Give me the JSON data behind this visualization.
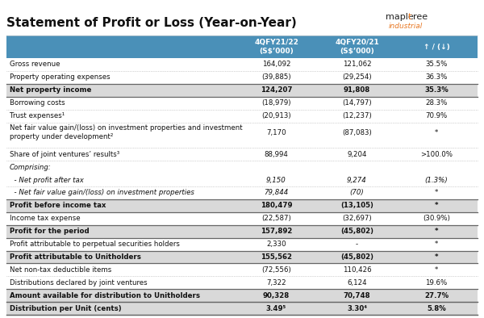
{
  "title": "Statement of Profit or Loss (Year-on-Year)",
  "header_bg": "#4a90b8",
  "header_text_color": "#ffffff",
  "col1_header": "4QFY21/22\n(S$’000)",
  "col2_header": "4QFY20/21\n(S$’000)",
  "col3_header": "↑ / (↓)",
  "rows": [
    {
      "label": "Gross revenue",
      "v1": "164,092",
      "v2": "121,062",
      "v3": "35.5%",
      "bold": false,
      "italic": false,
      "shade": false,
      "thick_top": false,
      "thick_bot": false
    },
    {
      "label": "Property operating expenses",
      "v1": "(39,885)",
      "v2": "(29,254)",
      "v3": "36.3%",
      "bold": false,
      "italic": false,
      "shade": false,
      "thick_top": false,
      "thick_bot": false
    },
    {
      "label": "Net property income",
      "v1": "124,207",
      "v2": "91,808",
      "v3": "35.3%",
      "bold": true,
      "italic": false,
      "shade": true,
      "thick_top": true,
      "thick_bot": true
    },
    {
      "label": "Borrowing costs",
      "v1": "(18,979)",
      "v2": "(14,797)",
      "v3": "28.3%",
      "bold": false,
      "italic": false,
      "shade": false,
      "thick_top": false,
      "thick_bot": false
    },
    {
      "label": "Trust expenses¹",
      "v1": "(20,913)",
      "v2": "(12,237)",
      "v3": "70.9%",
      "bold": false,
      "italic": false,
      "shade": false,
      "thick_top": false,
      "thick_bot": false
    },
    {
      "label": "Net fair value gain/(loss) on investment properties and investment\nproperty under development²",
      "v1": "7,170",
      "v2": "(87,083)",
      "v3": "*",
      "bold": false,
      "italic": false,
      "shade": false,
      "thick_top": false,
      "thick_bot": false,
      "tall": true
    },
    {
      "label": "Share of joint ventures’ results³",
      "v1": "88,994",
      "v2": "9,204",
      "v3": ">100.0%",
      "bold": false,
      "italic": false,
      "shade": false,
      "thick_top": false,
      "thick_bot": false
    },
    {
      "label": "Comprising:",
      "v1": "",
      "v2": "",
      "v3": "",
      "bold": false,
      "italic": true,
      "shade": false,
      "thick_top": false,
      "thick_bot": false,
      "no_bottom": true
    },
    {
      "label": "  - Net profit after tax",
      "v1": "9,150",
      "v2": "9,274",
      "v3": "(1.3%)",
      "bold": false,
      "italic": true,
      "shade": false,
      "thick_top": false,
      "thick_bot": false
    },
    {
      "label": "  - Net fair value gain/(loss) on investment properties",
      "v1": "79,844",
      "v2": "(70)",
      "v3": "*",
      "bold": false,
      "italic": true,
      "shade": false,
      "thick_top": false,
      "thick_bot": false
    },
    {
      "label": "Profit before income tax",
      "v1": "180,479",
      "v2": "(13,105)",
      "v3": "*",
      "bold": true,
      "italic": false,
      "shade": true,
      "thick_top": true,
      "thick_bot": true
    },
    {
      "label": "Income tax expense",
      "v1": "(22,587)",
      "v2": "(32,697)",
      "v3": "(30.9%)",
      "bold": false,
      "italic": false,
      "shade": false,
      "thick_top": false,
      "thick_bot": false
    },
    {
      "label": "Profit for the period",
      "v1": "157,892",
      "v2": "(45,802)",
      "v3": "*",
      "bold": true,
      "italic": false,
      "shade": true,
      "thick_top": true,
      "thick_bot": true
    },
    {
      "label": "Profit attributable to perpetual securities holders",
      "v1": "2,330",
      "v2": "-",
      "v3": "*",
      "bold": false,
      "italic": false,
      "shade": false,
      "thick_top": false,
      "thick_bot": false
    },
    {
      "label": "Profit attributable to Unitholders",
      "v1": "155,562",
      "v2": "(45,802)",
      "v3": "*",
      "bold": true,
      "italic": false,
      "shade": true,
      "thick_top": true,
      "thick_bot": true
    },
    {
      "label": "Net non-tax deductible items",
      "v1": "(72,556)",
      "v2": "110,426",
      "v3": "*",
      "bold": false,
      "italic": false,
      "shade": false,
      "thick_top": false,
      "thick_bot": false
    },
    {
      "label": "Distributions declared by joint ventures",
      "v1": "7,322",
      "v2": "6,124",
      "v3": "19.6%",
      "bold": false,
      "italic": false,
      "shade": false,
      "thick_top": false,
      "thick_bot": false
    },
    {
      "label": "Amount available for distribution to Unitholders",
      "v1": "90,328",
      "v2": "70,748",
      "v3": "27.7%",
      "bold": true,
      "italic": false,
      "shade": true,
      "thick_top": true,
      "thick_bot": true
    },
    {
      "label": "Distribution per Unit (cents)",
      "v1": "3.49⁵",
      "v2": "3.30⁴",
      "v3": "5.8%",
      "bold": true,
      "italic": false,
      "shade": true,
      "thick_top": true,
      "thick_bot": true
    }
  ],
  "bg_color": "#ffffff",
  "shade_color": "#d9d9d9",
  "dot_color": "#aaaaaa",
  "thick_line_color": "#666666",
  "logo_orange": "#e87722",
  "logo_dark": "#222222"
}
